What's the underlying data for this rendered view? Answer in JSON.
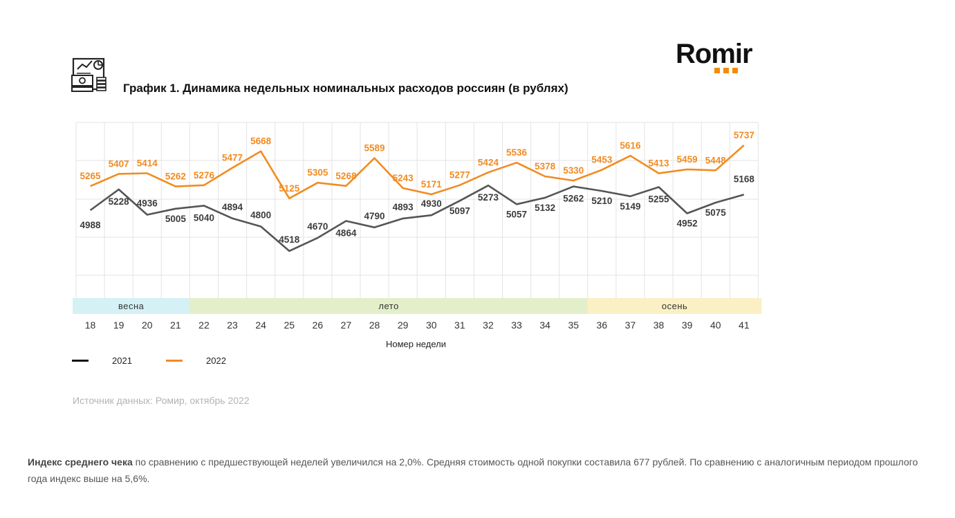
{
  "logo": {
    "text": "Romir"
  },
  "title": "График 1. Динамика недельных номинальных расходов россиян (в рублях)",
  "chart_data": {
    "type": "line",
    "xlabel": "Номер недели",
    "ylabel": "",
    "ylim": [
      3800,
      6000
    ],
    "grid": true,
    "legend_position": "bottom-left",
    "x": [
      18,
      19,
      20,
      21,
      22,
      23,
      24,
      25,
      26,
      27,
      28,
      29,
      30,
      31,
      32,
      33,
      34,
      35,
      36,
      37,
      38,
      39,
      40,
      41
    ],
    "series": [
      {
        "name": "2021",
        "color": "#555555",
        "values": [
          4988,
          5228,
          4936,
          5005,
          5040,
          4894,
          4800,
          4518,
          4670,
          4864,
          4790,
          4893,
          4930,
          5097,
          5273,
          5057,
          5132,
          5262,
          5210,
          5149,
          5255,
          4952,
          5075,
          5168
        ]
      },
      {
        "name": "2022",
        "color": "#f28b20",
        "values": [
          5265,
          5407,
          5414,
          5262,
          5276,
          5477,
          5668,
          5125,
          5305,
          5268,
          5589,
          5243,
          5171,
          5277,
          5424,
          5536,
          5378,
          5330,
          5453,
          5616,
          5413,
          5459,
          5448,
          5737
        ]
      }
    ],
    "seasons": [
      {
        "label": "весна",
        "from_week": 18,
        "to_week": 21,
        "color": "#d5f1f5"
      },
      {
        "label": "лето",
        "from_week": 22,
        "to_week": 35,
        "color": "#e3efca"
      },
      {
        "label": "осень",
        "from_week": 36,
        "to_week": 41,
        "color": "#fbf0c4"
      }
    ]
  },
  "source": "Источник данных: Ромир, октябрь 2022",
  "footer": {
    "bold": "Индекс среднего чека",
    "text": " по сравнению с предшествующей неделей увеличился на 2,0%. Средняя стоимость одной покупки составила 677 рублей. По сравнению с аналогичным периодом прошлого года индекс выше на 5,6%."
  }
}
